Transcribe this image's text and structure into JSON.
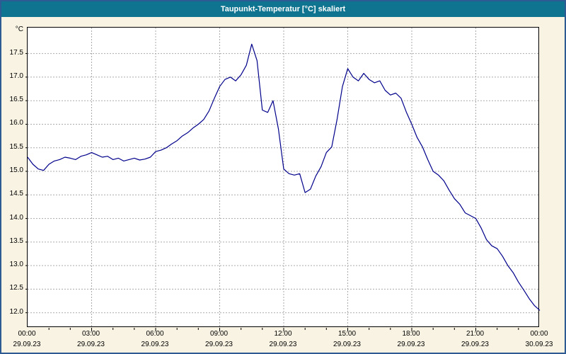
{
  "title": "Taupunkt-Temperatur [°C] skaliert",
  "colors": {
    "titlebar": "#0e7490",
    "background": "#f8f3e3",
    "plot_background": "#ffffff",
    "grid": "#aaaaaa",
    "line": "#00008b",
    "frame": "#2f5b94"
  },
  "y_axis": {
    "unit": "°C",
    "ticks": [
      {
        "label": "17.5",
        "value": 17.5
      },
      {
        "label": "17.0",
        "value": 17.0
      },
      {
        "label": "16.5",
        "value": 16.5
      },
      {
        "label": "16.0",
        "value": 16.0
      },
      {
        "label": "15.5",
        "value": 15.5
      },
      {
        "label": "15.0",
        "value": 15.0
      },
      {
        "label": "14.5",
        "value": 14.5
      },
      {
        "label": "14.0",
        "value": 14.0
      },
      {
        "label": "13.5",
        "value": 13.5
      },
      {
        "label": "13.0",
        "value": 13.0
      },
      {
        "label": "12.5",
        "value": 12.5
      },
      {
        "label": "12.0",
        "value": 12.0
      }
    ]
  },
  "x_axis": {
    "ticks": [
      {
        "time": "00:00",
        "date": "29.09.23",
        "hour": 0
      },
      {
        "time": "03:00",
        "date": "29.09.23",
        "hour": 3
      },
      {
        "time": "06:00",
        "date": "29.09.23",
        "hour": 6
      },
      {
        "time": "09:00",
        "date": "29.09.23",
        "hour": 9
      },
      {
        "time": "12:00",
        "date": "29.09.23",
        "hour": 12
      },
      {
        "time": "15:00",
        "date": "29.09.23",
        "hour": 15
      },
      {
        "time": "18:00",
        "date": "29.09.23",
        "hour": 18
      },
      {
        "time": "21:00",
        "date": "29.09.23",
        "hour": 21
      },
      {
        "time": "00:00",
        "date": "30.09.23",
        "hour": 24
      }
    ]
  },
  "chart_data": {
    "type": "line",
    "title": "Taupunkt-Temperatur [°C] skaliert",
    "ylabel": "°C",
    "ylim": [
      11.68,
      18.05
    ],
    "grid": true,
    "legend": "none",
    "x_start_hour": 0,
    "x_end_hour": 24,
    "interval_minutes": 15,
    "series_name": "Taupunkt-Temperatur",
    "values": [
      15.3,
      15.15,
      15.05,
      15.02,
      15.15,
      15.22,
      15.25,
      15.3,
      15.28,
      15.25,
      15.32,
      15.35,
      15.4,
      15.35,
      15.3,
      15.32,
      15.25,
      15.28,
      15.22,
      15.25,
      15.28,
      15.24,
      15.26,
      15.3,
      15.42,
      15.45,
      15.5,
      15.58,
      15.65,
      15.75,
      15.82,
      15.92,
      16.0,
      16.1,
      16.28,
      16.55,
      16.8,
      16.95,
      17.0,
      16.92,
      17.05,
      17.25,
      17.7,
      17.35,
      16.3,
      16.25,
      16.5,
      15.9,
      15.05,
      14.95,
      14.92,
      14.95,
      14.55,
      14.62,
      14.9,
      15.1,
      15.4,
      15.52,
      16.1,
      16.8,
      17.18,
      17.0,
      16.92,
      17.08,
      16.95,
      16.88,
      16.92,
      16.72,
      16.62,
      16.66,
      16.55,
      16.25,
      16.0,
      15.72,
      15.52,
      15.25,
      15.0,
      14.92,
      14.8,
      14.6,
      14.42,
      14.3,
      14.12,
      14.06,
      14.0,
      13.8,
      13.55,
      13.42,
      13.36,
      13.2,
      13.0,
      12.85,
      12.65,
      12.48,
      12.3,
      12.15,
      12.05
    ]
  }
}
